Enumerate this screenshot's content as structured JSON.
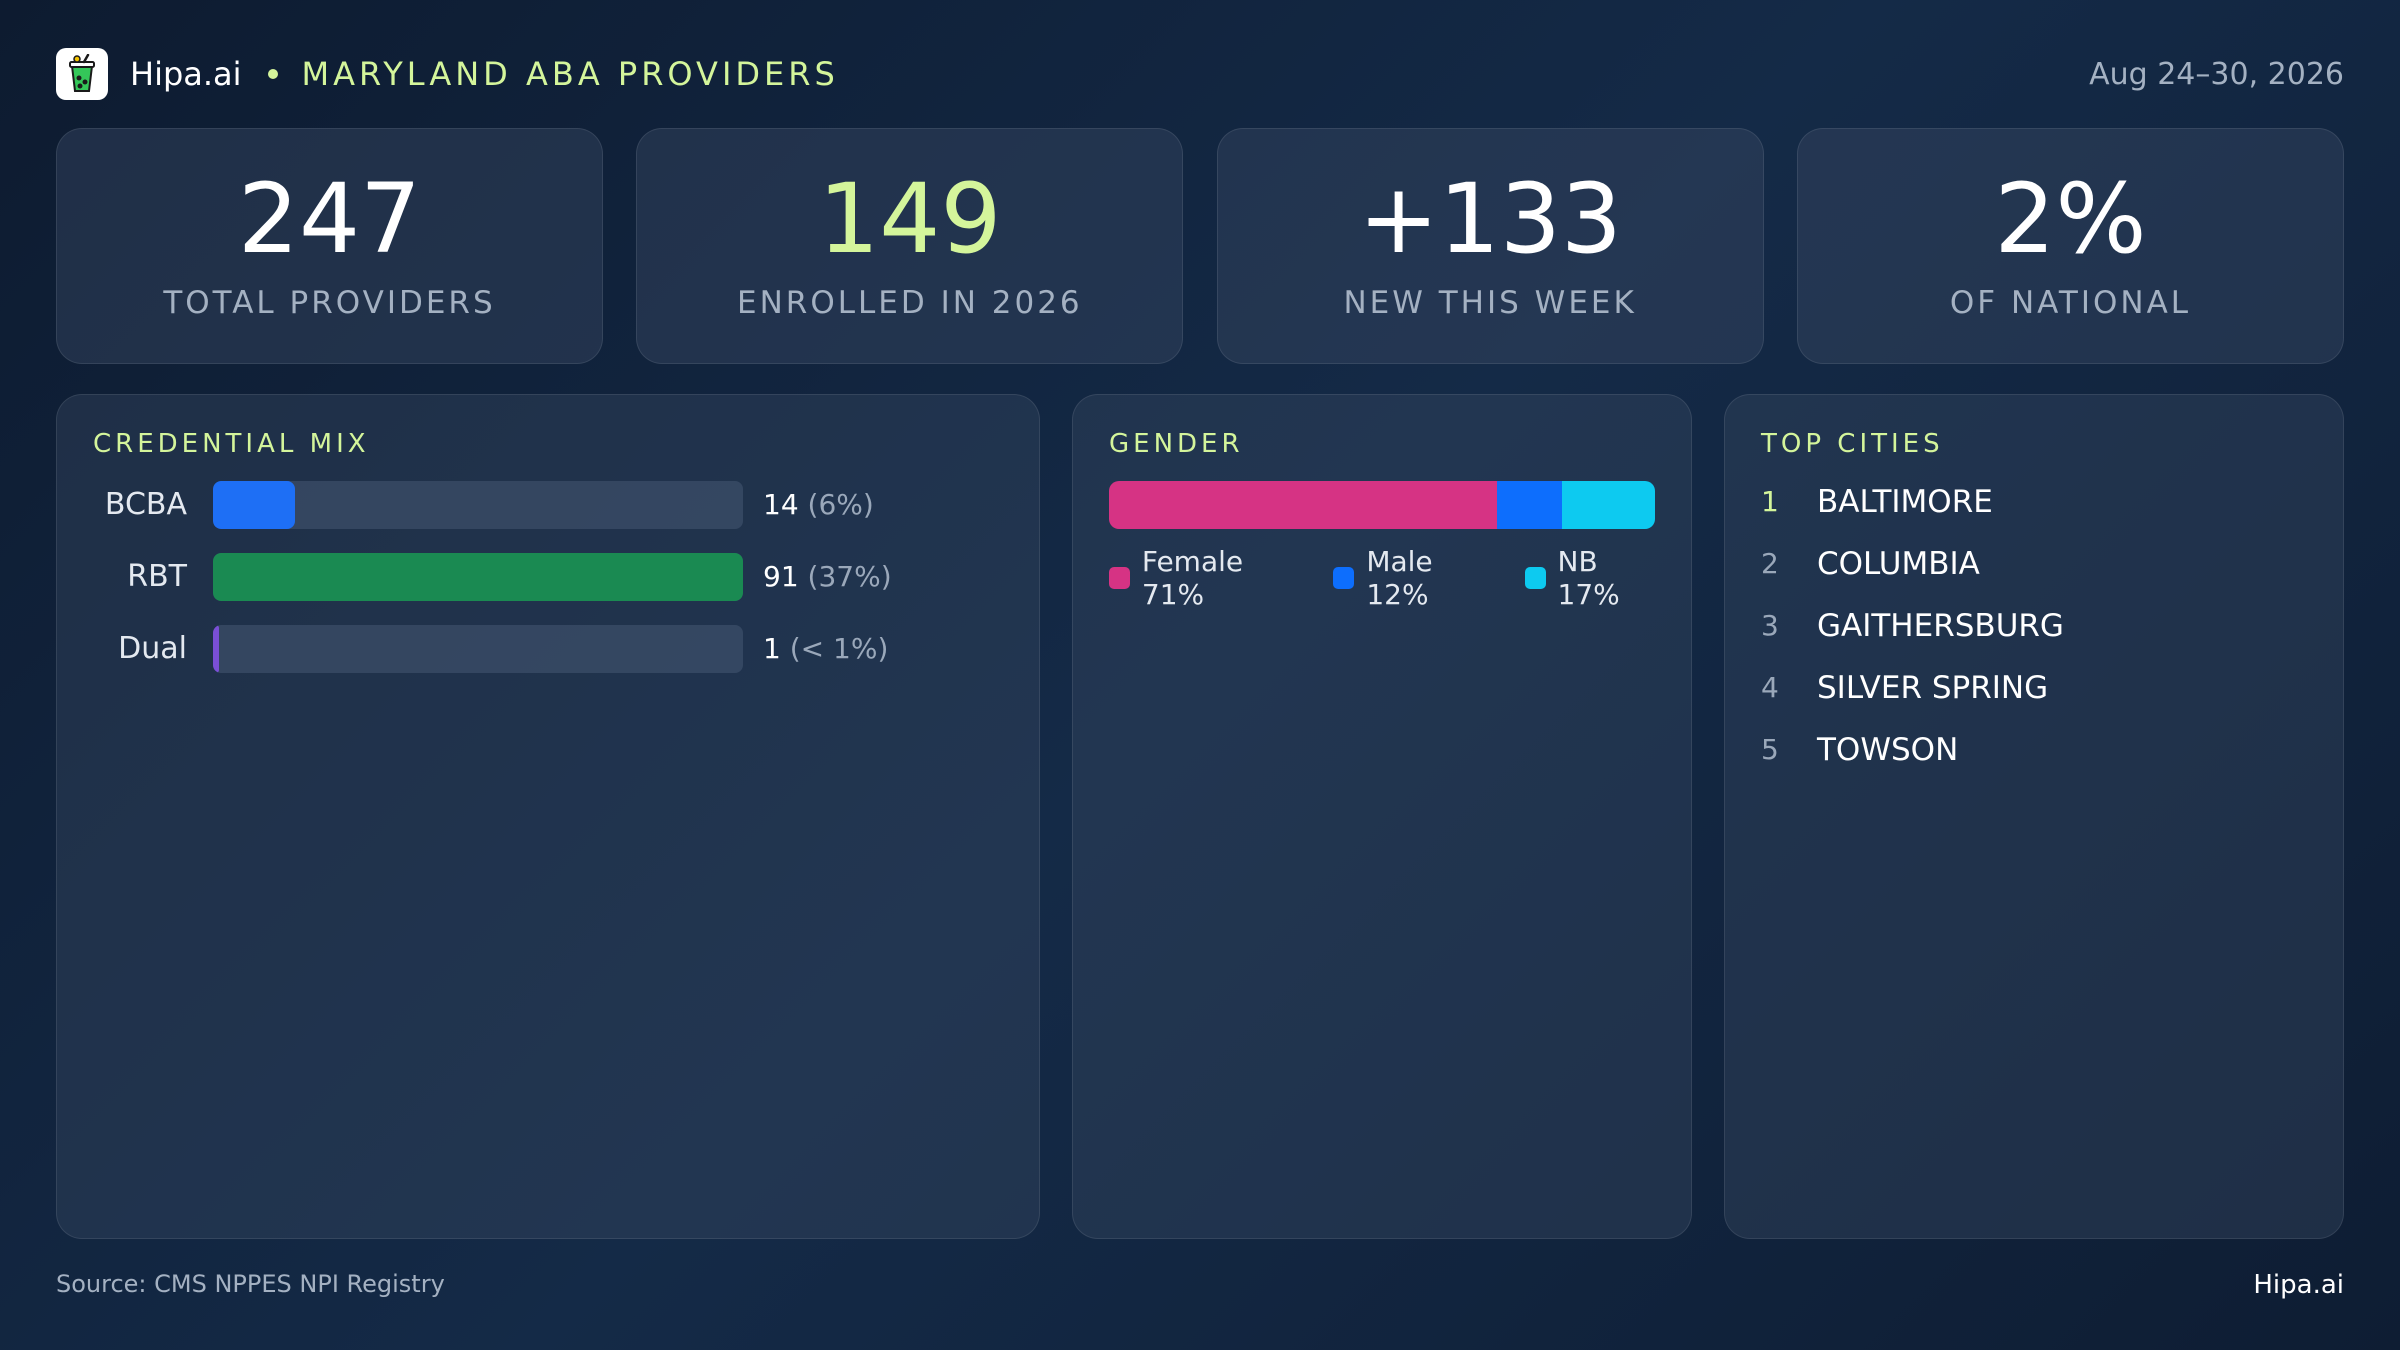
{
  "header": {
    "brand": "Hipa.ai",
    "title": "MARYLAND ABA PROVIDERS",
    "date_range": "Aug 24–30, 2026",
    "logo_icon": "cup-icon"
  },
  "kpis": [
    {
      "value": "247",
      "label": "TOTAL PROVIDERS"
    },
    {
      "value": "149",
      "label": "ENROLLED IN 2026"
    },
    {
      "value": "+133",
      "label": "NEW THIS WEEK"
    },
    {
      "value": "2%",
      "label": "OF NATIONAL"
    }
  ],
  "credential_mix": {
    "title": "CREDENTIAL MIX",
    "max": 91,
    "rows": [
      {
        "label": "BCBA",
        "count": "14",
        "pct": "(6%)",
        "value": 14,
        "color": "#1e6ff5"
      },
      {
        "label": "RBT",
        "count": "91",
        "pct": "(37%)",
        "value": 91,
        "color": "#1a8a52"
      },
      {
        "label": "Dual",
        "count": "1",
        "pct": "(< 1%)",
        "value": 1,
        "color": "#7a4fd6"
      }
    ]
  },
  "gender": {
    "title": "GENDER",
    "segments": [
      {
        "label": "Female 71%",
        "share": 71,
        "color": "#d63384"
      },
      {
        "label": "Male 12%",
        "share": 12,
        "color": "#0d6efd"
      },
      {
        "label": "NB 17%",
        "share": 17,
        "color": "#0dcaf0"
      }
    ]
  },
  "top_cities": {
    "title": "TOP CITIES",
    "items": [
      {
        "rank": "1",
        "name": "BALTIMORE"
      },
      {
        "rank": "2",
        "name": "COLUMBIA"
      },
      {
        "rank": "3",
        "name": "GAITHERSBURG"
      },
      {
        "rank": "4",
        "name": "SILVER SPRING"
      },
      {
        "rank": "5",
        "name": "TOWSON"
      }
    ]
  },
  "footer": {
    "source": "Source: CMS NPPES NPI Registry",
    "brand": "Hipa.ai"
  },
  "colors": {
    "accent": "#d4f59b",
    "muted": "#a4b1c2"
  }
}
